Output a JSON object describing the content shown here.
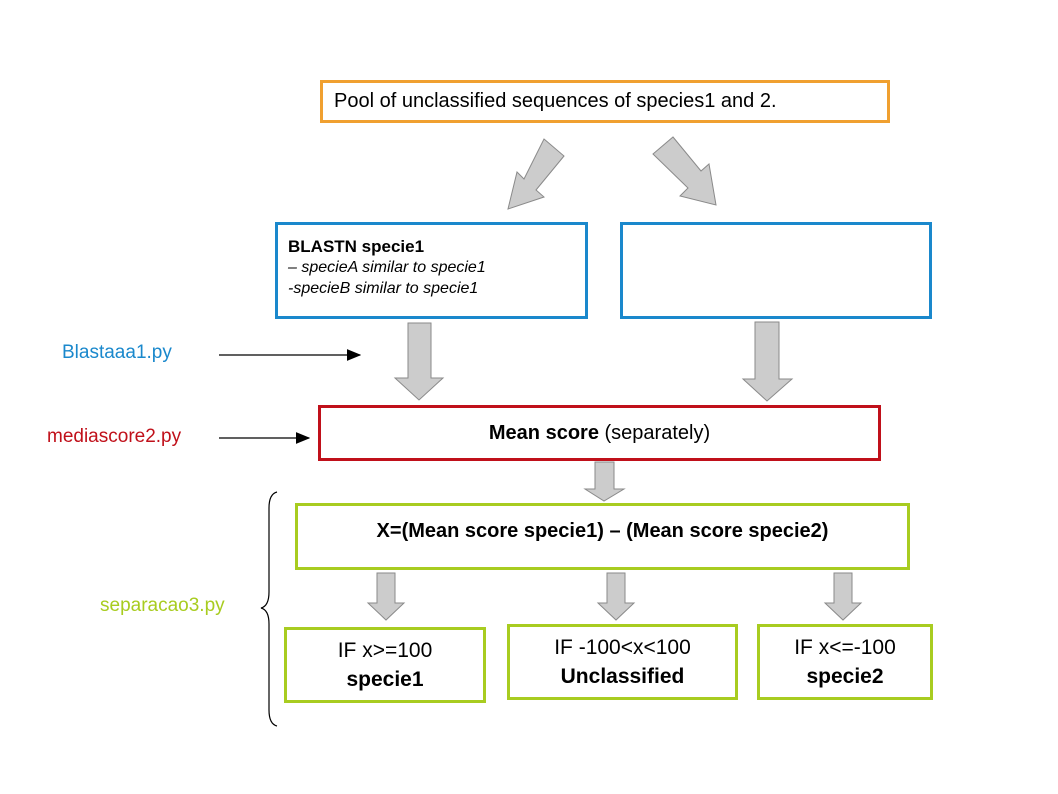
{
  "pool": {
    "text": "Pool of unclassified sequences of species1 and 2."
  },
  "blast_box": {
    "title": "BLASTN specie1",
    "line1": "– specieA similar to specie1",
    "line2": "-specieB similar to specie1"
  },
  "blank_box": {},
  "mean_score": {
    "bold": "Mean score",
    "rest": " (separately)"
  },
  "formula": {
    "text": "X=(Mean score specie1) – (Mean score specie2)"
  },
  "outcomes": [
    {
      "condition": "IF x>=100",
      "result": "specie1"
    },
    {
      "condition": "IF -100<x<100",
      "result": "Unclassified"
    },
    {
      "condition": "IF x<=-100",
      "result": "specie2"
    }
  ],
  "scripts": {
    "blast": {
      "text": "Blastaaa1.py",
      "color": "#1a88cc"
    },
    "media": {
      "text": "mediascore2.py",
      "color": "#c0101a"
    },
    "separa": {
      "text": "separacao3.py",
      "color": "#a8cc20"
    }
  }
}
